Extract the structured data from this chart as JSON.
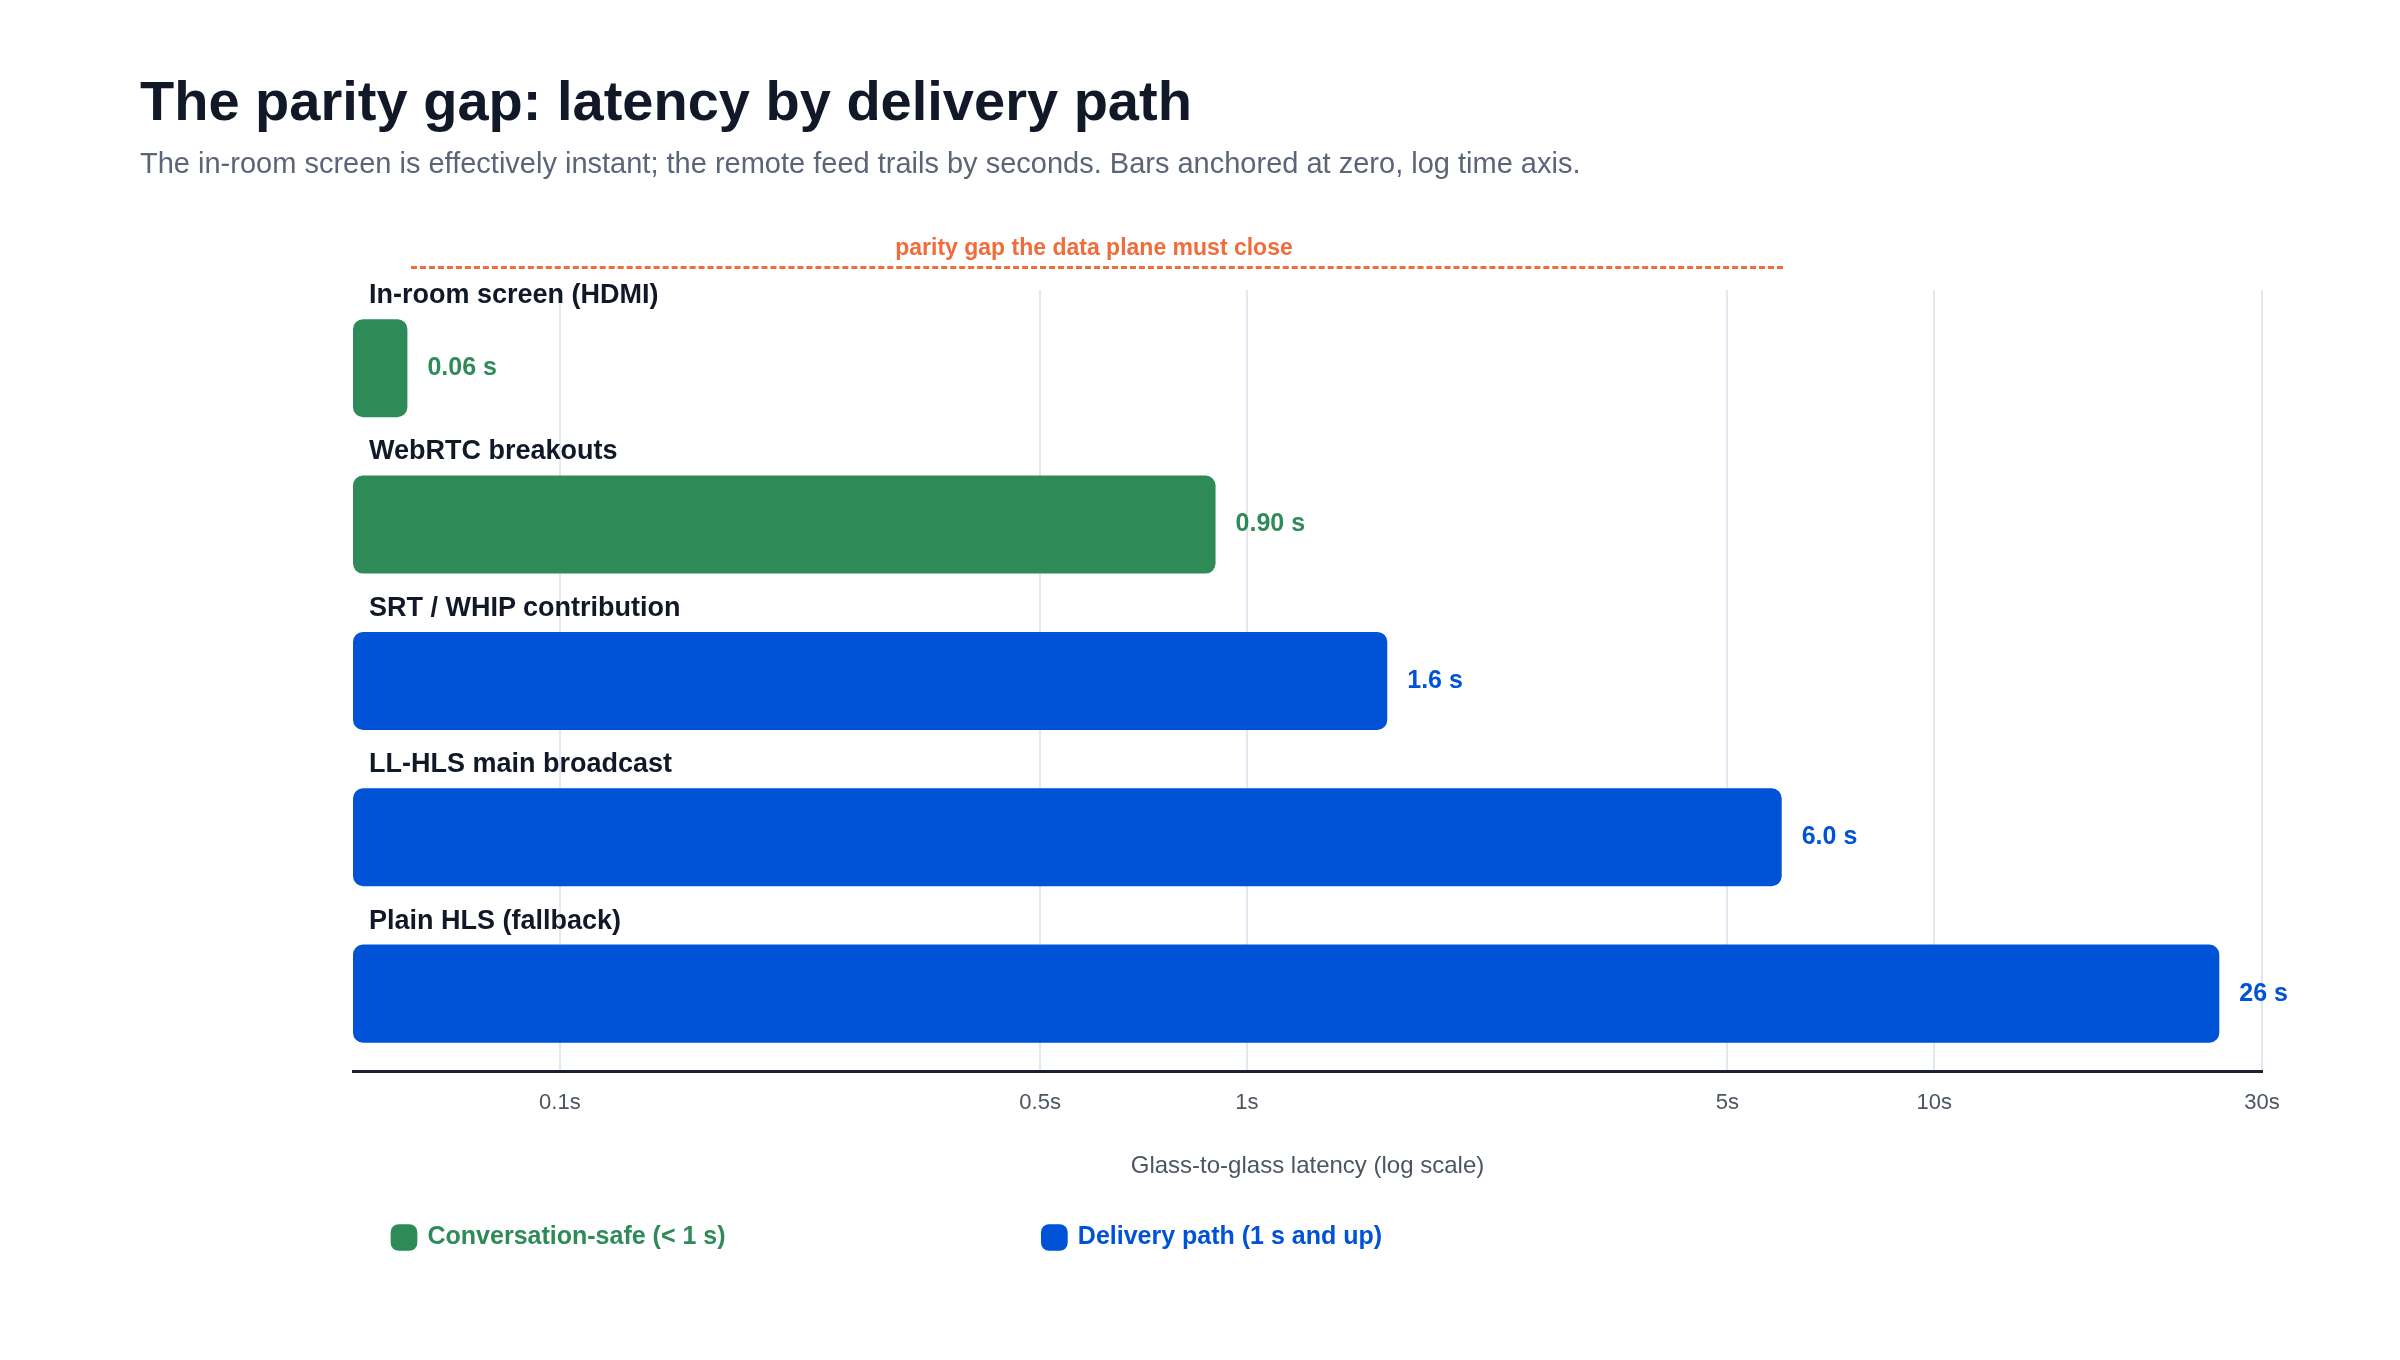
{
  "chart_data": {
    "type": "bar",
    "orientation": "horizontal",
    "title": "The parity gap: latency by delivery path",
    "subtitle": "The in-room screen is effectively instant; the remote feed trails by seconds. Bars anchored at zero, log time axis.",
    "xlabel": "Glass-to-glass latency (log scale)",
    "categories": [
      "In-room screen (HDMI)",
      "WebRTC breakouts",
      "SRT / WHIP contribution",
      "LL-HLS main broadcast",
      "Plain HLS (fallback)"
    ],
    "series": [
      {
        "name": "Conversation-safe (< 1 s)",
        "color": "#2e8b57",
        "values": [
          0.06,
          0.9,
          null,
          null,
          null
        ],
        "value_labels": [
          "0.06 s",
          "0.90 s",
          null,
          null,
          null
        ]
      },
      {
        "name": "Delivery path (1 s and up)",
        "color": "#0052d6",
        "values": [
          null,
          null,
          1.6,
          6.0,
          26
        ],
        "value_labels": [
          null,
          null,
          "1.6 s",
          "6.0 s",
          "26 s"
        ]
      }
    ],
    "log": "x",
    "xlim": [
      0.05,
      30
    ],
    "xticks": [
      {
        "value": 0.1,
        "label": "0.1s"
      },
      {
        "value": 0.5,
        "label": "0.5s"
      },
      {
        "value": 1,
        "label": "1s"
      },
      {
        "value": 5,
        "label": "5s"
      },
      {
        "value": 10,
        "label": "10s"
      },
      {
        "value": 30,
        "label": "30s"
      }
    ],
    "grid": "x",
    "legend": "bottom",
    "annotations": [
      "parity gap the data plane must close"
    ]
  }
}
